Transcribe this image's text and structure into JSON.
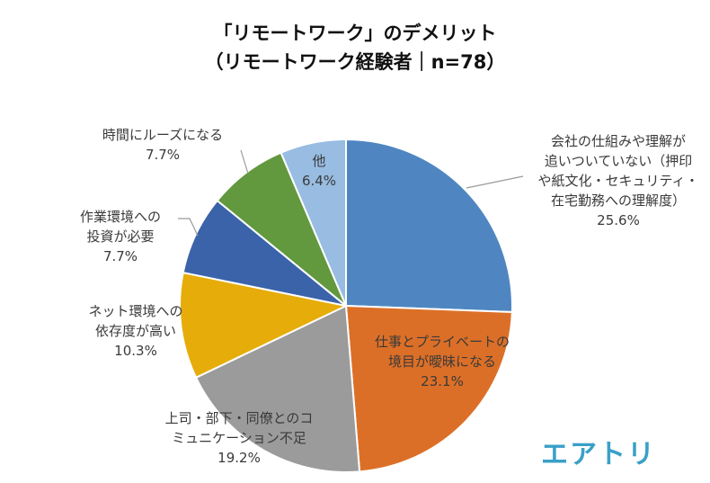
{
  "title": {
    "line1": "「リモートワーク」のデメリット",
    "line2": "（リモートワーク経験者｜n=78）"
  },
  "logo": {
    "text": "エアトリ"
  },
  "chart_data": {
    "type": "pie",
    "title": "「リモートワーク」のデメリット（リモートワーク経験者｜n=78）",
    "start": "12 o'clock",
    "direction": "clockwise",
    "slices": [
      {
        "label_lines": [
          "会社の仕組みや理解が",
          "追いついていない（押印",
          "や紙文化・セキュリティ・",
          "在宅勤務への理解度）"
        ],
        "value": 25.6,
        "value_label": "25.6%",
        "color": "#4f86c1"
      },
      {
        "label_lines": [
          "仕事とプライベートの",
          "境目が曖昧になる"
        ],
        "value": 23.1,
        "value_label": "23.1%",
        "color": "#dc6f27"
      },
      {
        "label_lines": [
          "上司・部下・同僚とのコ",
          "ミュニケーション不足"
        ],
        "value": 19.2,
        "value_label": "19.2%",
        "color": "#9b9b9b"
      },
      {
        "label_lines": [
          "ネット環境への",
          "依存度が高い"
        ],
        "value": 10.3,
        "value_label": "10.3%",
        "color": "#e6ac0a"
      },
      {
        "label_lines": [
          "作業環境への",
          "投資が必要"
        ],
        "value": 7.7,
        "value_label": "7.7%",
        "color": "#3a63aa"
      },
      {
        "label_lines": [
          "時間にルーズになる"
        ],
        "value": 7.7,
        "value_label": "7.7%",
        "color": "#62983e"
      },
      {
        "label_lines": [
          "他"
        ],
        "value": 6.4,
        "value_label": "6.4%",
        "color": "#98bce2"
      }
    ]
  }
}
